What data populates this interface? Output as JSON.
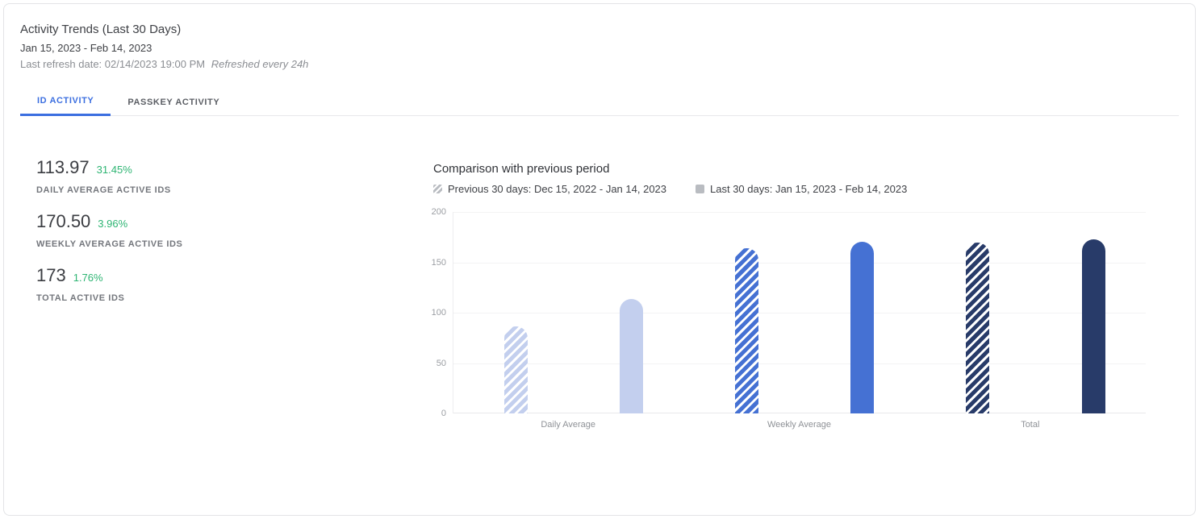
{
  "header": {
    "title": "Activity Trends (Last 30 Days)",
    "date_range": "Jan 15, 2023 - Feb 14, 2023",
    "last_refresh_label": "Last refresh date: 02/14/2023 19:00 PM",
    "refresh_note": "Refreshed every 24h"
  },
  "tabs": [
    {
      "label": "ID ACTIVITY",
      "active": true
    },
    {
      "label": "PASSKEY ACTIVITY",
      "active": false
    }
  ],
  "stats": [
    {
      "value": "113.97",
      "delta": "31.45%",
      "label": "DAILY AVERAGE ACTIVE IDS"
    },
    {
      "value": "170.50",
      "delta": "3.96%",
      "label": "WEEKLY AVERAGE ACTIVE IDS"
    },
    {
      "value": "173",
      "delta": "1.76%",
      "label": "TOTAL ACTIVE IDS"
    }
  ],
  "chart_data": {
    "type": "bar",
    "title": "Comparison with previous period",
    "categories": [
      "Daily Average",
      "Weekly Average",
      "Total"
    ],
    "series": [
      {
        "name": "Previous 30 days: Dec 15, 2022 - Jan 14, 2023",
        "pattern": "hatched",
        "values": [
          86.7,
          164.0,
          170.0
        ]
      },
      {
        "name": "Last 30 days: Jan 15, 2023 - Feb 14, 2023",
        "pattern": "solid",
        "values": [
          113.97,
          170.5,
          173.0
        ]
      }
    ],
    "y_ticks": [
      0,
      50,
      100,
      150,
      200
    ],
    "ylim": [
      0,
      200
    ],
    "xlabel": "",
    "ylabel": "",
    "grid": true,
    "legend_position": "top",
    "category_colors": [
      "#c3cfee",
      "#4571d3",
      "#283b69"
    ],
    "legend_icon_color": "#b9bcc1"
  },
  "colors": {
    "accent_blue": "#3c6fe0",
    "positive_green": "#2eb573"
  }
}
